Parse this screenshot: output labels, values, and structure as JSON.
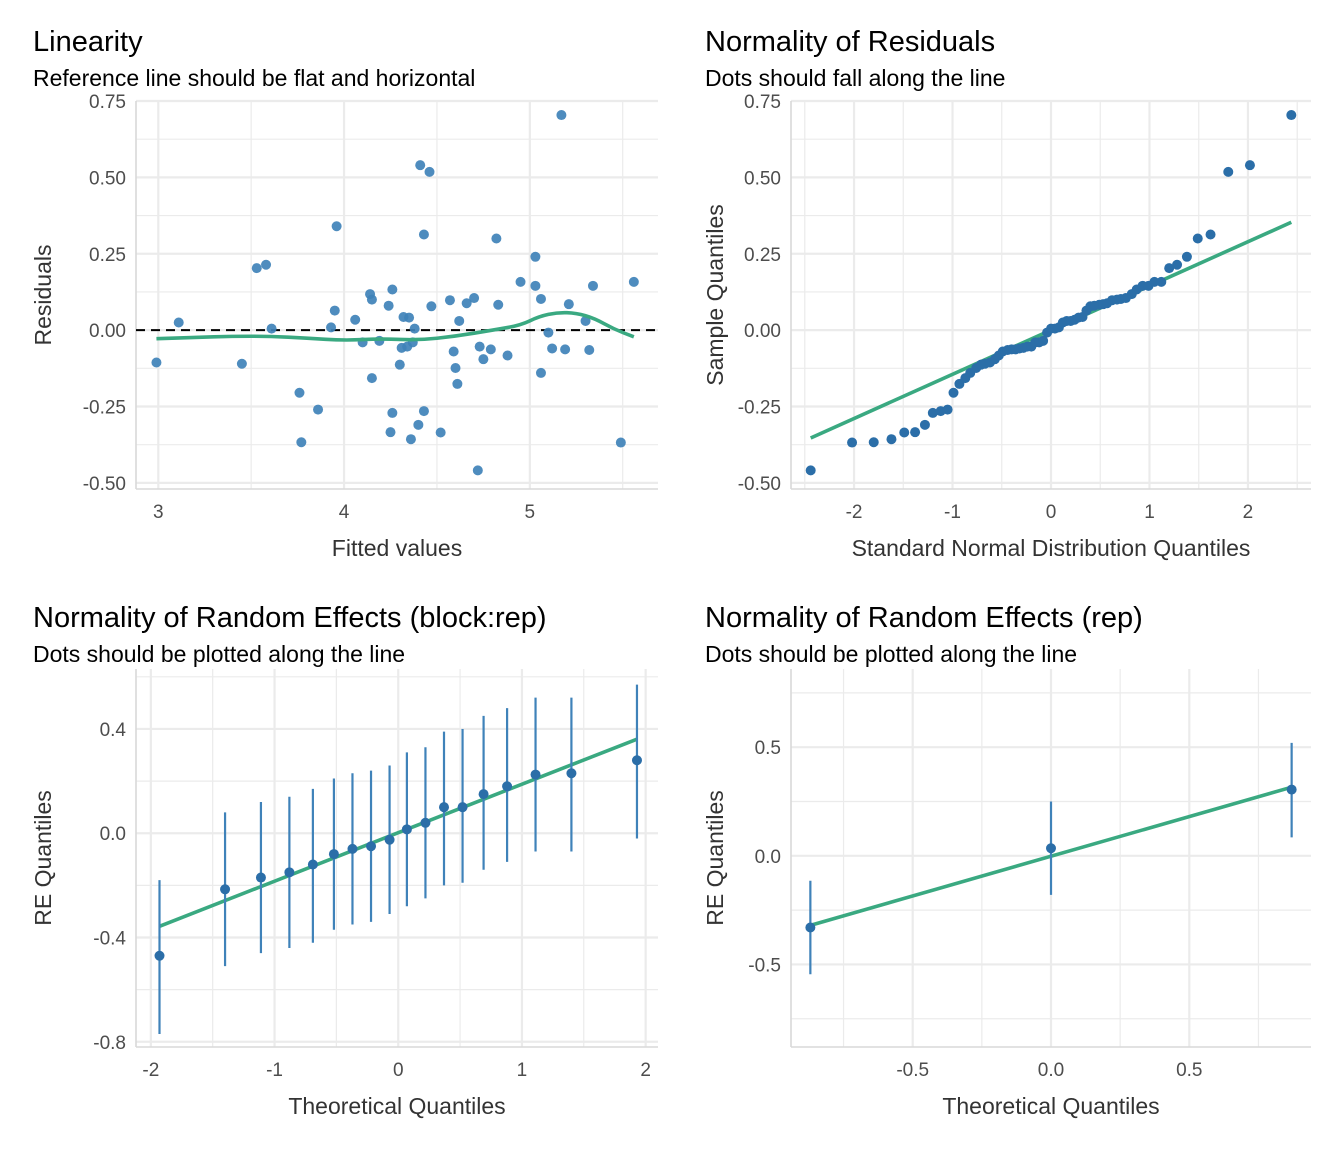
{
  "colors": {
    "point": "#2b6ea8",
    "point_alt": "#3f82b9",
    "fit_line": "#3aa981",
    "ref_line": "#000000",
    "grid": "#ebebeb",
    "axis_text": "#4d4d4d"
  },
  "chart_data": [
    {
      "id": "linearity",
      "type": "scatter",
      "title": "Linearity",
      "subtitle": "Reference line should be flat and horizontal",
      "xlabel": "Fitted values",
      "ylabel": "Residuals",
      "xlim": [
        2.88,
        5.69
      ],
      "ylim": [
        -0.52,
        0.75
      ],
      "xticks": [
        3,
        4,
        5
      ],
      "xtick_labels": [
        "3",
        "4",
        "5"
      ],
      "yticks": [
        -0.5,
        -0.25,
        0,
        0.25,
        0.5,
        0.75
      ],
      "ytick_labels": [
        "-0.50",
        "-0.25",
        "0.00",
        "0.25",
        "0.50",
        "0.75"
      ],
      "grid": true,
      "reference_line": {
        "y": 0,
        "style": "dashed"
      },
      "points": [
        [
          2.99,
          -0.106
        ],
        [
          3.11,
          0.025
        ],
        [
          3.45,
          -0.11
        ],
        [
          3.53,
          0.203
        ],
        [
          3.58,
          0.214
        ],
        [
          3.61,
          0.005
        ],
        [
          3.76,
          -0.205
        ],
        [
          3.77,
          -0.367
        ],
        [
          3.86,
          -0.26
        ],
        [
          3.93,
          0.009
        ],
        [
          3.95,
          0.064
        ],
        [
          3.96,
          0.34
        ],
        [
          4.06,
          0.034
        ],
        [
          4.1,
          -0.04
        ],
        [
          4.14,
          0.118
        ],
        [
          4.15,
          0.1
        ],
        [
          4.15,
          -0.157
        ],
        [
          4.19,
          -0.035
        ],
        [
          4.24,
          0.08
        ],
        [
          4.25,
          -0.334
        ],
        [
          4.26,
          -0.271
        ],
        [
          4.26,
          0.133
        ],
        [
          4.3,
          -0.113
        ],
        [
          4.31,
          -0.058
        ],
        [
          4.32,
          0.043
        ],
        [
          4.34,
          -0.054
        ],
        [
          4.35,
          0.041
        ],
        [
          4.36,
          -0.357
        ],
        [
          4.37,
          -0.04
        ],
        [
          4.38,
          0.005
        ],
        [
          4.4,
          -0.31
        ],
        [
          4.41,
          0.54
        ],
        [
          4.43,
          0.313
        ],
        [
          4.43,
          -0.265
        ],
        [
          4.46,
          0.518
        ],
        [
          4.47,
          0.078
        ],
        [
          4.52,
          -0.335
        ],
        [
          4.57,
          0.098
        ],
        [
          4.59,
          -0.07
        ],
        [
          4.6,
          -0.124
        ],
        [
          4.61,
          -0.176
        ],
        [
          4.62,
          0.03
        ],
        [
          4.66,
          0.088
        ],
        [
          4.7,
          0.105
        ],
        [
          4.72,
          -0.459
        ],
        [
          4.73,
          -0.054
        ],
        [
          4.75,
          -0.095
        ],
        [
          4.79,
          -0.063
        ],
        [
          4.82,
          0.3
        ],
        [
          4.83,
          0.083
        ],
        [
          4.88,
          -0.083
        ],
        [
          4.95,
          0.158
        ],
        [
          5.03,
          0.145
        ],
        [
          5.03,
          0.24
        ],
        [
          5.06,
          0.102
        ],
        [
          5.06,
          -0.14
        ],
        [
          5.1,
          -0.008
        ],
        [
          5.12,
          -0.06
        ],
        [
          5.17,
          0.704
        ],
        [
          5.19,
          -0.063
        ],
        [
          5.21,
          0.085
        ],
        [
          5.3,
          0.03
        ],
        [
          5.32,
          -0.065
        ],
        [
          5.34,
          0.145
        ],
        [
          5.49,
          -0.368
        ],
        [
          5.56,
          0.158
        ]
      ],
      "smooth": [
        [
          2.99,
          -0.028
        ],
        [
          3.2,
          -0.024
        ],
        [
          3.4,
          -0.02
        ],
        [
          3.6,
          -0.02
        ],
        [
          3.8,
          -0.026
        ],
        [
          4.0,
          -0.034
        ],
        [
          4.2,
          -0.028
        ],
        [
          4.4,
          -0.033
        ],
        [
          4.6,
          -0.02
        ],
        [
          4.8,
          0.0
        ],
        [
          4.95,
          0.016
        ],
        [
          5.05,
          0.045
        ],
        [
          5.15,
          0.058
        ],
        [
          5.25,
          0.056
        ],
        [
          5.35,
          0.038
        ],
        [
          5.45,
          0.004
        ],
        [
          5.56,
          -0.022
        ]
      ]
    },
    {
      "id": "qq-residuals",
      "type": "scatter",
      "title": "Normality of Residuals",
      "subtitle": "Dots should fall along the line",
      "xlabel": "Standard Normal Distribution Quantiles",
      "ylabel": "Sample Quantiles",
      "xlim": [
        -2.64,
        2.64
      ],
      "ylim": [
        -0.52,
        0.75
      ],
      "xticks": [
        -2,
        -1,
        0,
        1,
        2
      ],
      "xtick_labels": [
        "-2",
        "-1",
        "0",
        "1",
        "2"
      ],
      "yticks": [
        -0.5,
        -0.25,
        0,
        0.25,
        0.5,
        0.75
      ],
      "ytick_labels": [
        "-0.50",
        "-0.25",
        "0.00",
        "0.25",
        "0.50",
        "0.75"
      ],
      "grid": true,
      "line": [
        [
          -2.44,
          -0.353
        ],
        [
          2.44,
          0.353
        ]
      ],
      "points": [
        [
          -2.44,
          -0.459
        ],
        [
          -2.02,
          -0.368
        ],
        [
          -1.8,
          -0.367
        ],
        [
          -1.62,
          -0.357
        ],
        [
          -1.49,
          -0.335
        ],
        [
          -1.38,
          -0.334
        ],
        [
          -1.28,
          -0.31
        ],
        [
          -1.2,
          -0.271
        ],
        [
          -1.12,
          -0.265
        ],
        [
          -1.05,
          -0.26
        ],
        [
          -0.99,
          -0.205
        ],
        [
          -0.93,
          -0.176
        ],
        [
          -0.87,
          -0.157
        ],
        [
          -0.82,
          -0.14
        ],
        [
          -0.76,
          -0.124
        ],
        [
          -0.71,
          -0.113
        ],
        [
          -0.67,
          -0.11
        ],
        [
          -0.62,
          -0.106
        ],
        [
          -0.57,
          -0.095
        ],
        [
          -0.53,
          -0.083
        ],
        [
          -0.49,
          -0.07
        ],
        [
          -0.44,
          -0.065
        ],
        [
          -0.4,
          -0.063
        ],
        [
          -0.36,
          -0.063
        ],
        [
          -0.32,
          -0.06
        ],
        [
          -0.28,
          -0.058
        ],
        [
          -0.24,
          -0.054
        ],
        [
          -0.2,
          -0.054
        ],
        [
          -0.16,
          -0.04
        ],
        [
          -0.12,
          -0.04
        ],
        [
          -0.08,
          -0.035
        ],
        [
          -0.04,
          -0.008
        ],
        [
          0.0,
          0.005
        ],
        [
          0.04,
          0.005
        ],
        [
          0.08,
          0.009
        ],
        [
          0.12,
          0.025
        ],
        [
          0.16,
          0.03
        ],
        [
          0.2,
          0.03
        ],
        [
          0.24,
          0.034
        ],
        [
          0.28,
          0.041
        ],
        [
          0.32,
          0.043
        ],
        [
          0.36,
          0.064
        ],
        [
          0.4,
          0.078
        ],
        [
          0.44,
          0.08
        ],
        [
          0.49,
          0.083
        ],
        [
          0.53,
          0.085
        ],
        [
          0.57,
          0.088
        ],
        [
          0.62,
          0.098
        ],
        [
          0.67,
          0.1
        ],
        [
          0.71,
          0.102
        ],
        [
          0.76,
          0.105
        ],
        [
          0.82,
          0.118
        ],
        [
          0.87,
          0.133
        ],
        [
          0.93,
          0.145
        ],
        [
          0.99,
          0.145
        ],
        [
          1.05,
          0.158
        ],
        [
          1.12,
          0.158
        ],
        [
          1.2,
          0.203
        ],
        [
          1.28,
          0.214
        ],
        [
          1.38,
          0.24
        ],
        [
          1.49,
          0.3
        ],
        [
          1.62,
          0.313
        ],
        [
          1.8,
          0.518
        ],
        [
          2.02,
          0.54
        ],
        [
          2.44,
          0.704
        ]
      ]
    },
    {
      "id": "re-block-rep",
      "type": "scatter",
      "title": "Normality of Random Effects (block:rep)",
      "subtitle": "Dots should be plotted along the line",
      "xlabel": "Theoretical Quantiles",
      "ylabel": "RE Quantiles",
      "xlim": [
        -2.12,
        2.1
      ],
      "ylim": [
        -0.82,
        0.63
      ],
      "xticks": [
        -2,
        -1,
        0,
        1,
        2
      ],
      "xtick_labels": [
        "-2",
        "-1",
        "0",
        "1",
        "2"
      ],
      "yticks": [
        -0.8,
        -0.4,
        0.0,
        0.4
      ],
      "ytick_labels": [
        "-0.8",
        "-0.4",
        "0.0",
        "0.4"
      ],
      "grid": true,
      "line": [
        [
          -1.93,
          -0.357
        ],
        [
          1.93,
          0.361
        ]
      ],
      "points": [
        [
          -1.93,
          -0.47,
          -0.77,
          -0.18
        ],
        [
          -1.4,
          -0.215,
          -0.51,
          0.08
        ],
        [
          -1.11,
          -0.17,
          -0.46,
          0.12
        ],
        [
          -0.88,
          -0.15,
          -0.44,
          0.14
        ],
        [
          -0.69,
          -0.12,
          -0.42,
          0.17
        ],
        [
          -0.52,
          -0.08,
          -0.37,
          0.21
        ],
        [
          -0.37,
          -0.06,
          -0.35,
          0.23
        ],
        [
          -0.22,
          -0.05,
          -0.34,
          0.24
        ],
        [
          -0.07,
          -0.025,
          -0.31,
          0.26
        ],
        [
          0.07,
          0.015,
          -0.28,
          0.31
        ],
        [
          0.22,
          0.04,
          -0.25,
          0.33
        ],
        [
          0.37,
          0.1,
          -0.2,
          0.39
        ],
        [
          0.52,
          0.1,
          -0.19,
          0.4
        ],
        [
          0.69,
          0.15,
          -0.14,
          0.45
        ],
        [
          0.88,
          0.18,
          -0.11,
          0.48
        ],
        [
          1.11,
          0.225,
          -0.07,
          0.52
        ],
        [
          1.4,
          0.23,
          -0.07,
          0.52
        ],
        [
          1.93,
          0.28,
          -0.02,
          0.57
        ]
      ]
    },
    {
      "id": "re-rep",
      "type": "scatter",
      "title": "Normality of Random Effects (rep)",
      "subtitle": "Dots should be plotted along the line",
      "xlabel": "Theoretical Quantiles",
      "ylabel": "RE Quantiles",
      "xlim": [
        -0.94,
        0.94
      ],
      "ylim": [
        -0.88,
        0.86
      ],
      "xticks": [
        -0.5,
        0.0,
        0.5
      ],
      "xtick_labels": [
        "-0.5",
        "0.0",
        "0.5"
      ],
      "yticks": [
        -0.5,
        0.0,
        0.5
      ],
      "ytick_labels": [
        "-0.5",
        "0.0",
        "0.5"
      ],
      "grid": true,
      "line": [
        [
          -0.87,
          -0.32
        ],
        [
          0.87,
          0.316
        ]
      ],
      "points": [
        [
          -0.87,
          -0.33,
          -0.545,
          -0.115
        ],
        [
          0.0,
          0.035,
          -0.18,
          0.25
        ],
        [
          0.87,
          0.305,
          0.085,
          0.52
        ]
      ]
    }
  ]
}
